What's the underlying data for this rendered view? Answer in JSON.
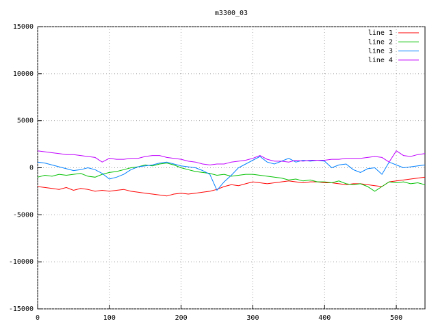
{
  "chart_data": {
    "type": "line",
    "title": "m3300_03",
    "x": [
      0,
      10,
      20,
      30,
      40,
      50,
      60,
      70,
      80,
      90,
      100,
      110,
      120,
      130,
      140,
      150,
      160,
      170,
      180,
      190,
      200,
      210,
      220,
      230,
      240,
      250,
      260,
      270,
      280,
      290,
      300,
      310,
      320,
      330,
      340,
      350,
      360,
      370,
      380,
      390,
      400,
      410,
      420,
      430,
      440,
      450,
      460,
      470,
      480,
      490,
      500,
      510,
      520,
      530,
      540
    ],
    "series": [
      {
        "name": "line 1",
        "color": "#ff0000",
        "values": [
          -2000,
          -2100,
          -2200,
          -2300,
          -2100,
          -2400,
          -2200,
          -2300,
          -2500,
          -2400,
          -2500,
          -2400,
          -2300,
          -2500,
          -2600,
          -2700,
          -2800,
          -2900,
          -3000,
          -2800,
          -2700,
          -2800,
          -2700,
          -2600,
          -2500,
          -2300,
          -2000,
          -1800,
          -1900,
          -1700,
          -1500,
          -1600,
          -1700,
          -1600,
          -1500,
          -1400,
          -1500,
          -1600,
          -1500,
          -1500,
          -1600,
          -1600,
          -1700,
          -1800,
          -1700,
          -1700,
          -1800,
          -1900,
          -2000,
          -1500,
          -1400,
          -1300,
          -1200,
          -1100,
          -1000
        ]
      },
      {
        "name": "line 2",
        "color": "#00c000",
        "values": [
          -1000,
          -800,
          -900,
          -700,
          -800,
          -700,
          -600,
          -900,
          -1000,
          -700,
          -500,
          -400,
          -200,
          0,
          100,
          300,
          200,
          400,
          500,
          300,
          0,
          -200,
          -400,
          -500,
          -600,
          -800,
          -700,
          -900,
          -800,
          -700,
          -700,
          -800,
          -900,
          -1000,
          -1100,
          -1300,
          -1200,
          -1400,
          -1300,
          -1500,
          -1500,
          -1600,
          -1400,
          -1700,
          -1800,
          -1700,
          -2000,
          -2500,
          -2000,
          -1500,
          -1600,
          -1500,
          -1700,
          -1600,
          -1800
        ]
      },
      {
        "name": "line 3",
        "color": "#0080ff",
        "values": [
          600,
          500,
          300,
          100,
          -100,
          -300,
          -200,
          0,
          -200,
          -600,
          -1200,
          -1000,
          -700,
          -200,
          100,
          200,
          300,
          500,
          600,
          400,
          200,
          100,
          0,
          -300,
          -700,
          -2400,
          -1500,
          -800,
          0,
          400,
          800,
          1200,
          600,
          400,
          700,
          1000,
          600,
          800,
          700,
          800,
          700,
          0,
          300,
          400,
          -200,
          -500,
          -100,
          0,
          -700,
          600,
          300,
          0,
          100,
          200,
          300
        ]
      },
      {
        "name": "line 4",
        "color": "#c000ff",
        "values": [
          1800,
          1700,
          1600,
          1500,
          1400,
          1400,
          1300,
          1200,
          1100,
          600,
          1000,
          900,
          900,
          1000,
          1000,
          1200,
          1300,
          1300,
          1100,
          1000,
          900,
          700,
          600,
          400,
          300,
          400,
          400,
          600,
          700,
          800,
          1000,
          1300,
          900,
          700,
          700,
          600,
          800,
          700,
          800,
          800,
          800,
          900,
          900,
          1000,
          1000,
          1000,
          1100,
          1200,
          1100,
          600,
          1800,
          1300,
          1200,
          1400,
          1500
        ]
      }
    ],
    "xlim": [
      0,
      540
    ],
    "xticks": [
      0,
      100,
      200,
      300,
      400,
      500
    ],
    "ylim": [
      -15000,
      15000
    ],
    "yticks": [
      -15000,
      -10000,
      -5000,
      0,
      5000,
      10000,
      15000
    ],
    "grid": true,
    "legend": "top-right"
  }
}
